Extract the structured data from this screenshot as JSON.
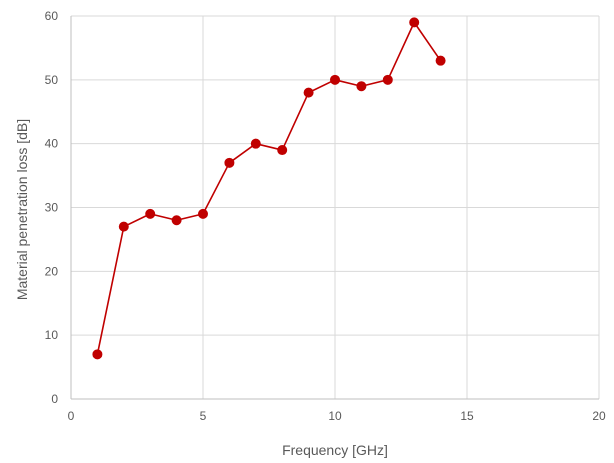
{
  "chart_data": {
    "type": "scatter",
    "title": "",
    "xlabel": "Frequency [GHz]",
    "ylabel": "Material penetration loss [dB]",
    "xlim": [
      0,
      20
    ],
    "ylim": [
      0,
      60
    ],
    "xticks": [
      0,
      5,
      10,
      15,
      20
    ],
    "yticks": [
      0,
      10,
      20,
      30,
      40,
      50,
      60
    ],
    "grid": true,
    "legend": "none",
    "series": [
      {
        "color": "#c00000",
        "marker": "circle",
        "line": "solid",
        "x": [
          1,
          2,
          3,
          4,
          5,
          6,
          7,
          8,
          9,
          10,
          11,
          12,
          13,
          14
        ],
        "y": [
          7,
          27,
          29,
          28,
          29,
          37,
          40,
          39,
          48,
          50,
          49,
          50,
          59,
          53
        ]
      }
    ]
  },
  "colors": {
    "grid": "#d9d9d9",
    "axis": "#bfbfbf"
  }
}
